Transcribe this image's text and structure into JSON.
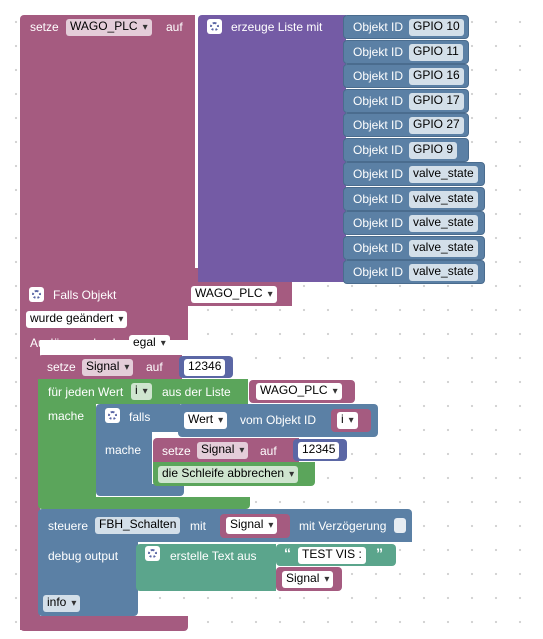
{
  "colors": {
    "variable": "#a55b80",
    "list": "#745ba5",
    "object": "#5b80a5",
    "control": "#5ba55b",
    "text": "#5ba58c",
    "shadow": "#8c3d66"
  },
  "setze_top": {
    "prefix": "setze",
    "variable": "WAGO_PLC",
    "suffix": "auf"
  },
  "create_list": {
    "label": "erzeuge Liste mit",
    "icon": "gear-icon"
  },
  "object_label": "Objekt ID",
  "object_items": [
    "GPIO 10",
    "GPIO 11",
    "GPIO 16",
    "GPIO 17",
    "GPIO 27",
    "GPIO 9",
    "valve_state",
    "valve_state",
    "valve_state",
    "valve_state",
    "valve_state"
  ],
  "trigger": {
    "title": "Falls Objekt",
    "object": "WAGO_PLC",
    "condition": "wurde geändert",
    "cause_label": "Auslösung durch",
    "cause_value": "egal"
  },
  "set_signal": {
    "prefix": "setze",
    "variable": "Signal",
    "suffix": "auf",
    "value": "12346"
  },
  "foreach": {
    "prefix": "für jeden Wert",
    "var": "i",
    "middle": "aus der Liste",
    "list": "WAGO_PLC",
    "do_label": "mache"
  },
  "if_block": {
    "label": "falls",
    "do_label": "mache"
  },
  "condition": {
    "value": "Wert",
    "label": "vom Objekt ID",
    "obj": "i"
  },
  "inner_set": {
    "prefix": "setze",
    "variable": "Signal",
    "suffix": "auf",
    "value": "12345"
  },
  "break_loop": "die Schleife abbrechen",
  "control": {
    "prefix": "steuere",
    "target": "FBH_Schalten",
    "with": "mit",
    "value": "Signal",
    "delay": "mit Verzögerung"
  },
  "debug": {
    "label": "debug output",
    "create_text": "erstelle Text aus",
    "string": "TEST VIS :",
    "var": "Signal",
    "level": "info"
  }
}
